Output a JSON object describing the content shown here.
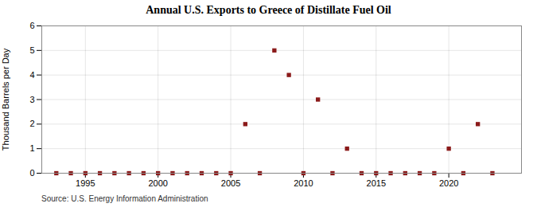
{
  "chart_data": {
    "type": "scatter",
    "title": "Annual U.S. Exports to Greece of Distillate Fuel Oil",
    "ylabel": "Thousand Barrels per Day",
    "annotations": [
      "Source: U.S. Energy Information Administration"
    ],
    "x": [
      1993,
      1994,
      1995,
      1996,
      1997,
      1998,
      1999,
      2000,
      2001,
      2002,
      2003,
      2004,
      2005,
      2006,
      2007,
      2008,
      2009,
      2010,
      2011,
      2012,
      2013,
      2014,
      2015,
      2016,
      2017,
      2018,
      2019,
      2020,
      2021,
      2022,
      2023
    ],
    "values": [
      0,
      0,
      0,
      0,
      0,
      0,
      0,
      0,
      0,
      0,
      0,
      0,
      0,
      2,
      0,
      5,
      4,
      0,
      3,
      0,
      1,
      0,
      0,
      0,
      0,
      0,
      0,
      1,
      0,
      2,
      0
    ],
    "color": "#8b1a1a",
    "marker": "square",
    "xlim": [
      1992,
      2025
    ],
    "xticks": [
      1995,
      2000,
      2005,
      2010,
      2015,
      2020
    ],
    "ylim": [
      0,
      6
    ],
    "yticks": [
      0,
      1,
      2,
      3,
      4,
      5,
      6
    ],
    "grid": true
  }
}
